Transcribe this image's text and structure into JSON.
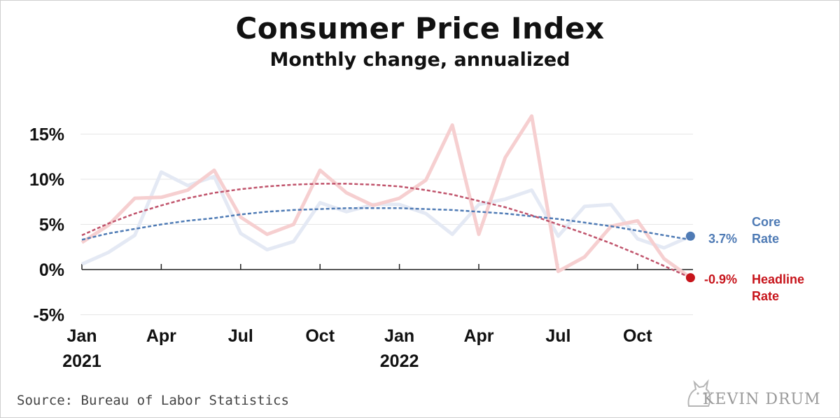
{
  "title": "Consumer Price Index",
  "subtitle": "Monthly change, annualized",
  "source": "Source: Bureau of Labor Statistics",
  "brand": "KEVIN DRUM",
  "colors": {
    "core": "#4f7bb5",
    "core_faint": "#e4e9f4",
    "headline": "#c7141b",
    "headline_faint": "#f6cfd0",
    "headline_trend": "#c0546c",
    "grid": "#e6e6e6",
    "axis": "#222222"
  },
  "chart_data": {
    "type": "line",
    "x": [
      "Jan 2021",
      "Feb 2021",
      "Mar 2021",
      "Apr 2021",
      "May 2021",
      "Jun 2021",
      "Jul 2021",
      "Aug 2021",
      "Sep 2021",
      "Oct 2021",
      "Nov 2021",
      "Dec 2021",
      "Jan 2022",
      "Feb 2022",
      "Mar 2022",
      "Apr 2022",
      "May 2022",
      "Jun 2022",
      "Jul 2022",
      "Aug 2022",
      "Sep 2022",
      "Oct 2022",
      "Nov 2022",
      "Dec 2022"
    ],
    "x_tick_labels": [
      {
        "month": "Jan",
        "year": "2021",
        "index": 0
      },
      {
        "month": "Apr",
        "year": "",
        "index": 3
      },
      {
        "month": "Jul",
        "year": "",
        "index": 6
      },
      {
        "month": "Oct",
        "year": "",
        "index": 9
      },
      {
        "month": "Jan",
        "year": "2022",
        "index": 12
      },
      {
        "month": "Apr",
        "year": "",
        "index": 15
      },
      {
        "month": "Jul",
        "year": "",
        "index": 18
      },
      {
        "month": "Oct",
        "year": "",
        "index": 21
      }
    ],
    "y_ticks": [
      -5,
      0,
      5,
      10,
      15
    ],
    "y_tick_labels": [
      "-5%",
      "0%",
      "5%",
      "10%",
      "15%"
    ],
    "ylim": [
      -5,
      15
    ],
    "grid": true,
    "series": [
      {
        "key": "core",
        "values": [
          0.6,
          1.9,
          3.8,
          10.8,
          9.3,
          10.3,
          4.0,
          2.2,
          3.1,
          7.4,
          6.4,
          7.2,
          7.2,
          6.2,
          3.9,
          7.2,
          7.8,
          8.8,
          3.7,
          7.0,
          7.2,
          3.4,
          2.4,
          3.7
        ],
        "trend": [
          3.3,
          4.0,
          4.5,
          5.0,
          5.4,
          5.7,
          6.1,
          6.4,
          6.6,
          6.7,
          6.8,
          6.8,
          6.8,
          6.7,
          6.6,
          6.4,
          6.2,
          5.9,
          5.6,
          5.2,
          4.8,
          4.3,
          3.8,
          3.3
        ],
        "label_value": "3.7%",
        "label_name": [
          "Core",
          "Rate"
        ]
      },
      {
        "key": "headline",
        "values": [
          3.0,
          4.9,
          7.9,
          8.0,
          8.8,
          11.0,
          5.8,
          3.9,
          5.0,
          11.0,
          8.5,
          7.1,
          7.9,
          9.9,
          16.0,
          3.9,
          12.4,
          17.0,
          -0.2,
          1.4,
          4.8,
          5.4,
          1.2,
          -0.9
        ],
        "trend": [
          3.8,
          5.1,
          6.2,
          7.1,
          7.9,
          8.5,
          8.9,
          9.2,
          9.4,
          9.5,
          9.5,
          9.4,
          9.2,
          8.8,
          8.3,
          7.6,
          6.9,
          6.0,
          5.0,
          4.0,
          2.9,
          1.7,
          0.4,
          -0.9
        ],
        "label_value": "-0.9%",
        "label_name": [
          "Headline",
          "Rate"
        ]
      }
    ]
  }
}
